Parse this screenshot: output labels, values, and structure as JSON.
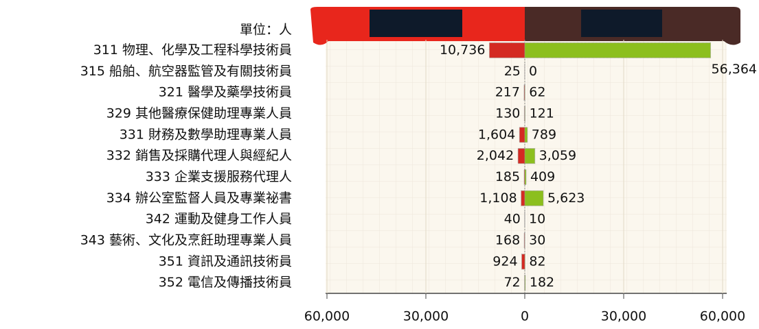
{
  "chart_data": {
    "type": "butterfly-bar",
    "subtitle": "單位：人",
    "categories": [
      "311 物理、化學及工程科學技術員",
      "315 船舶、航空器監管及有關技術員",
      "321 醫學及藥學技術員",
      "329 其他醫療保健助理專業人員",
      "331 財務及數學助理專業人員",
      "332 銷售及採購代理人與經紀人",
      "333 企業支援服務代理人",
      "334 辦公室監督人員及專業祕書",
      "342 運動及健身工作人員",
      "343 藝術、文化及烹飪助理專業人員",
      "351 資訊及通訊技術員",
      "352 電信及傳播技術員"
    ],
    "series": [
      {
        "side": "left",
        "color": "#d42a22",
        "values": [
          10736,
          25,
          217,
          130,
          1604,
          2042,
          185,
          1108,
          40,
          168,
          924,
          72
        ],
        "value_labels": [
          "10,736",
          "25",
          "217",
          "130",
          "1,604",
          "2,042",
          "185",
          "1,108",
          "40",
          "168",
          "924",
          "72"
        ]
      },
      {
        "side": "right",
        "color": "#8cbf1e",
        "values": [
          56364,
          0,
          62,
          121,
          789,
          3059,
          409,
          5623,
          10,
          30,
          82,
          182
        ],
        "value_labels": [
          "56,364",
          "0",
          "62",
          "121",
          "789",
          "3,059",
          "409",
          "5,623",
          "10",
          "30",
          "82",
          "182"
        ]
      }
    ],
    "xlim": [
      0,
      60000
    ],
    "xticks_left": [
      {
        "value": 60000,
        "label": "60,000"
      },
      {
        "value": 30000,
        "label": "30,000"
      },
      0
    ],
    "xticks_right": [
      {
        "value": 30000,
        "label": "30,000"
      },
      {
        "value": 60000,
        "label": "60,000"
      }
    ],
    "grid": true
  }
}
